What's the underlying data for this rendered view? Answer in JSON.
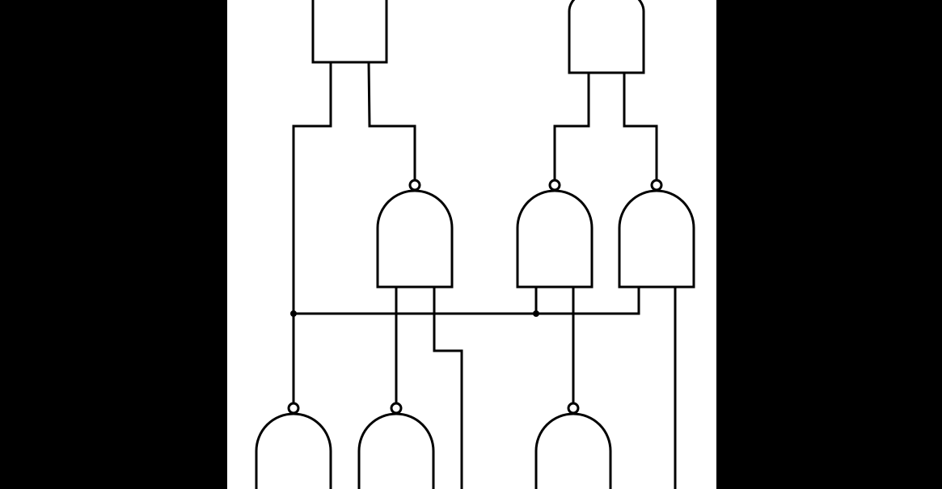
{
  "colors": {
    "outer_background": "#000000",
    "canvas_background": "#ffffff",
    "stroke": "#000000"
  },
  "diagram": {
    "type": "logic-gate-circuit",
    "gate_count": 8,
    "gates": [
      {
        "name": "top-left-gate",
        "shape": "rectangle",
        "orientation": "down",
        "inverted_output": false
      },
      {
        "name": "top-right-gate",
        "shape": "and",
        "orientation": "up",
        "inverted_output": false
      },
      {
        "name": "middle-left-gate",
        "shape": "and",
        "orientation": "up",
        "inverted_output": true
      },
      {
        "name": "middle-center-gate",
        "shape": "and",
        "orientation": "up",
        "inverted_output": true
      },
      {
        "name": "middle-right-gate",
        "shape": "and",
        "orientation": "up",
        "inverted_output": true
      },
      {
        "name": "bottom-left-gate",
        "shape": "and",
        "orientation": "up",
        "inverted_output": true
      },
      {
        "name": "bottom-center-left-gate",
        "shape": "and",
        "orientation": "up",
        "inverted_output": true
      },
      {
        "name": "bottom-center-right-gate",
        "shape": "and",
        "orientation": "up",
        "inverted_output": true
      }
    ],
    "junction_count": 2
  }
}
